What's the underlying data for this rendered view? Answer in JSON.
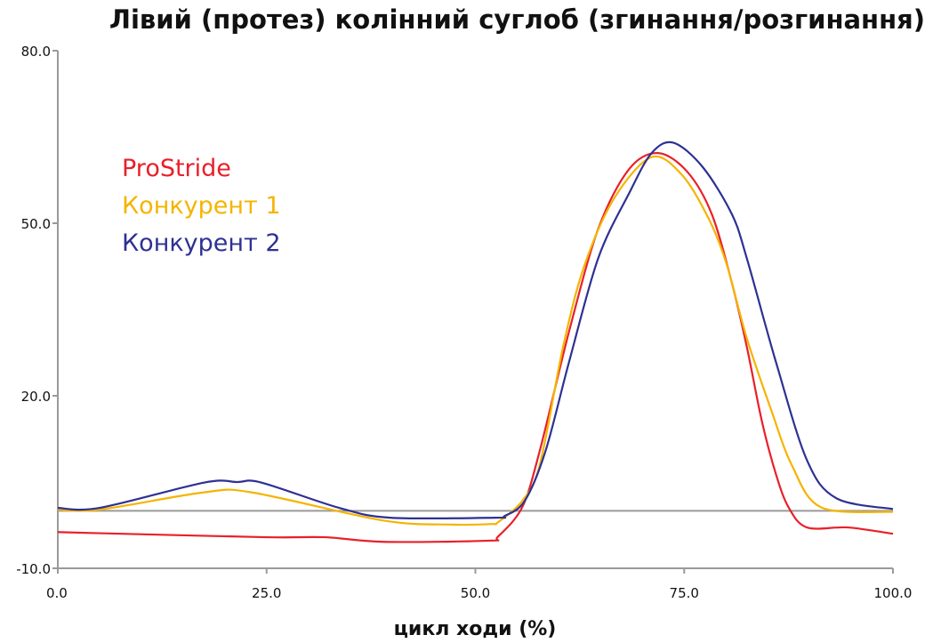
{
  "chart_data": {
    "type": "line",
    "title": "Лівий (протез) колінний суглоб (згинання/розгинання)",
    "xlabel": "цикл ходи (%)",
    "ylabel": "",
    "xlim": [
      0,
      100
    ],
    "ylim": [
      -10,
      80
    ],
    "xticks": [
      0,
      25,
      50,
      75,
      100
    ],
    "xtick_labels": [
      "0.0",
      "25.0",
      "50.0",
      "75.0",
      "100.0"
    ],
    "yticks": [
      -10,
      20,
      50,
      80
    ],
    "ytick_labels": [
      "-10.0",
      "20.0",
      "50.0",
      "80.0"
    ],
    "reference_line": 0,
    "grid": false,
    "legend_position": "top-left",
    "series": [
      {
        "name": "ProStride",
        "color": "#e8202a",
        "x": [
          0,
          5,
          25,
          32,
          39,
          51.6,
          52.7,
          55.6,
          57.7,
          61.2,
          64.7,
          68.4,
          71.9,
          75.4,
          78.3,
          80.7,
          82.5,
          84.3,
          86,
          87.5,
          89.7,
          94.6,
          100
        ],
        "y": [
          -3.7,
          -3.9,
          -4.6,
          -4.6,
          -5.4,
          -5.2,
          -4.5,
          0.6,
          10.4,
          31.1,
          49,
          59.4,
          62.2,
          58.9,
          51.6,
          39.7,
          28.5,
          15.6,
          6.3,
          0.6,
          -2.9,
          -2.9,
          -4.0
        ]
      },
      {
        "name": "Конкурент 1",
        "color": "#f5b400",
        "x": [
          0,
          5,
          17.5,
          23.2,
          39,
          47.2,
          52,
          52.7,
          55.6,
          57.7,
          60.5,
          63,
          66.6,
          71.1,
          74.8,
          78,
          80.1,
          82.5,
          85.4,
          87.9,
          91.4,
          100
        ],
        "y": [
          0.2,
          0.2,
          3.2,
          3.2,
          -1.7,
          -2.4,
          -2.3,
          -2.0,
          1.7,
          7.9,
          28.5,
          42.4,
          54.3,
          61.5,
          58.3,
          50.6,
          42.8,
          30,
          17.6,
          7.9,
          0.6,
          -0.2
        ]
      },
      {
        "name": "Конкурент 2",
        "color": "#2e3192",
        "x": [
          0,
          5,
          17.5,
          21.5,
          24.4,
          33.7,
          39.8,
          52.4,
          53.5,
          55.9,
          58.4,
          61.2,
          64.7,
          68.4,
          71.1,
          73.7,
          77.2,
          80.7,
          82.5,
          86,
          89.7,
          93.2,
          100
        ],
        "y": [
          0.5,
          0.5,
          4.9,
          5.0,
          4.9,
          0.5,
          -1.2,
          -1.2,
          -0.9,
          1.7,
          10.4,
          25.8,
          43.9,
          55.2,
          62.2,
          64,
          59.8,
          51.6,
          43.9,
          25.8,
          8.8,
          2.2,
          0.3
        ]
      }
    ]
  }
}
